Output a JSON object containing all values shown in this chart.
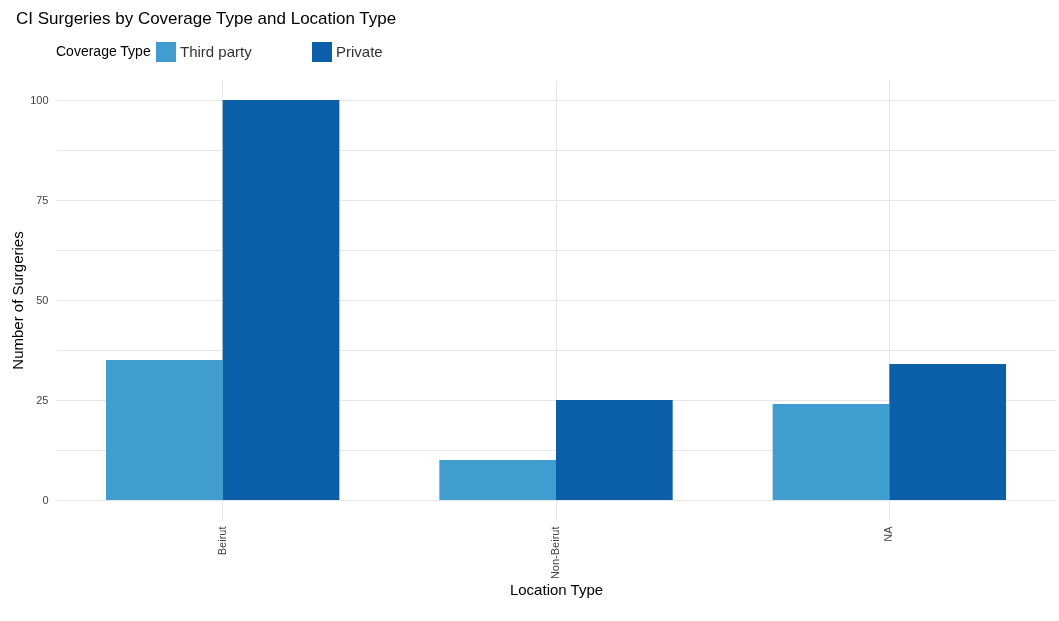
{
  "chart_data": {
    "type": "bar",
    "title": "CI Surgeries by Coverage Type and Location Type",
    "xlabel": "Location Type",
    "ylabel": "Number of Surgeries",
    "legend_title": "Coverage Type",
    "legend": "top",
    "categories": [
      "Beirut",
      "Non-Beirut",
      "NA"
    ],
    "series": [
      {
        "name": "Third party",
        "color": "#3f9dd0",
        "values": [
          35,
          10,
          24
        ]
      },
      {
        "name": "Private",
        "color": "#0a5fa8",
        "values": [
          100,
          25,
          34
        ]
      }
    ],
    "ylim": [
      -5,
      105
    ],
    "yticks": [
      0,
      {
        "value": 12.5,
        "label": null
      },
      25,
      {
        "value": 37.5,
        "label": null
      },
      50,
      {
        "value": 62.5,
        "label": null
      },
      75,
      {
        "value": 87.5,
        "label": null
      },
      100
    ],
    "grid": true
  }
}
